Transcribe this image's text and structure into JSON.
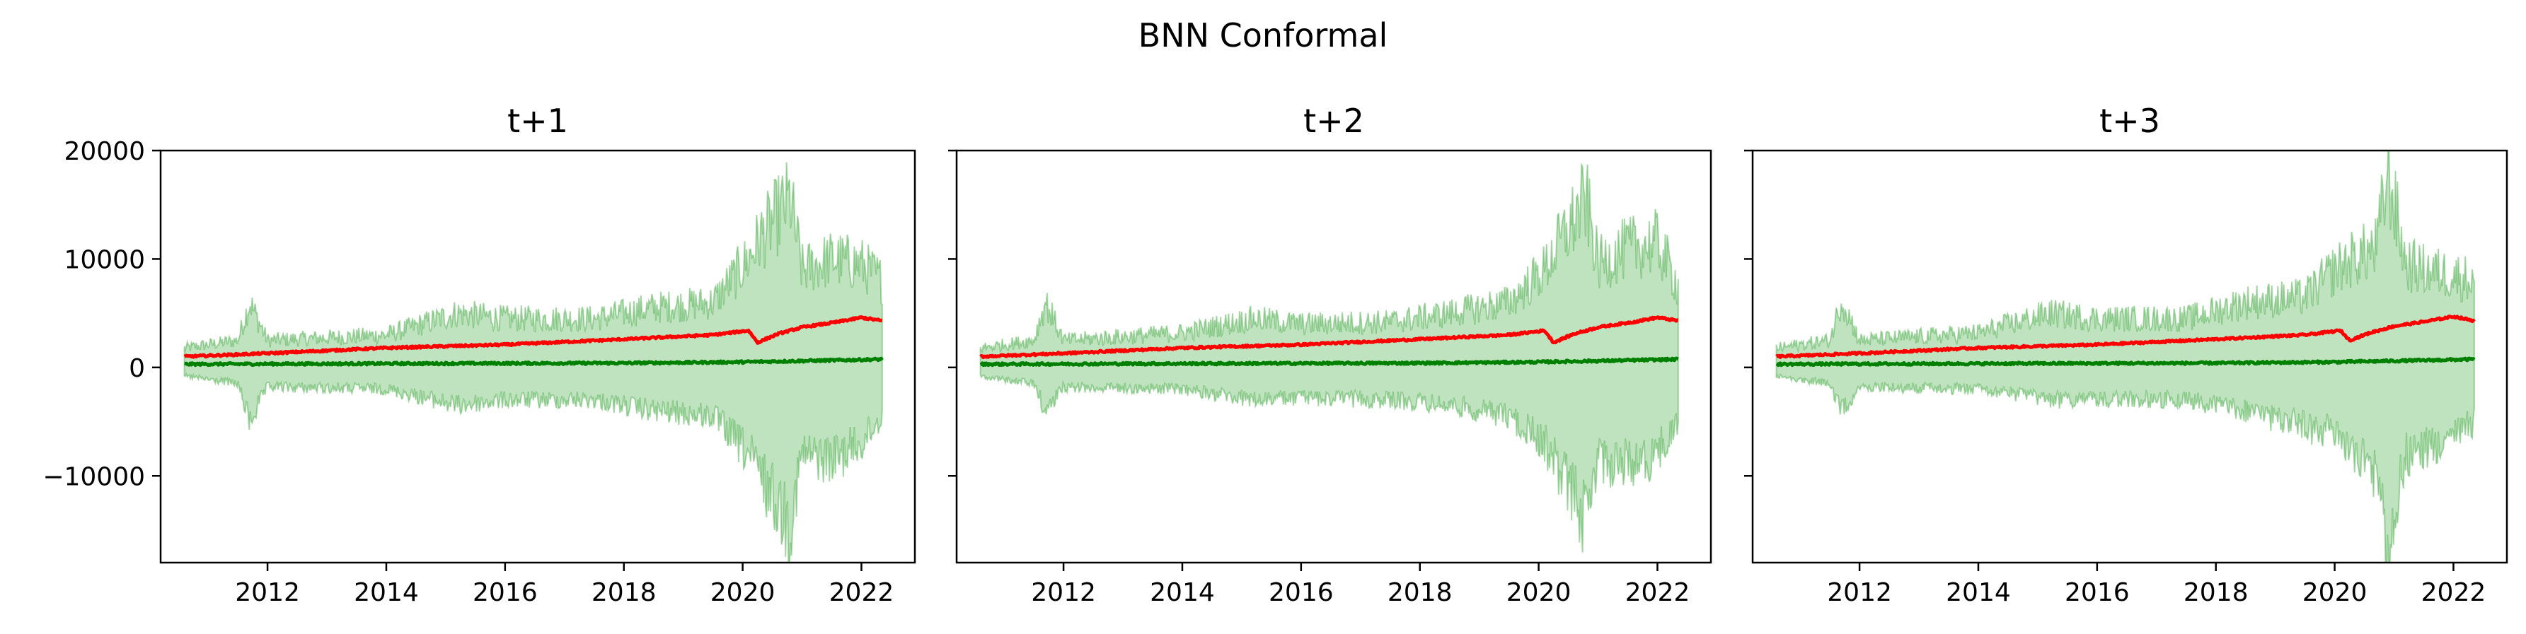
{
  "figure": {
    "suptitle": "BNN Conformal",
    "colors": {
      "predicted": "#ff0000",
      "actual": "#008000",
      "interval": "#2ca02c",
      "background": "#ffffff"
    }
  },
  "chart_data": [
    {
      "type": "line",
      "title": "t+1",
      "xlabel": "",
      "ylabel": "",
      "xlim": [
        2010.2,
        2022.9
      ],
      "ylim": [
        -18000,
        20000
      ],
      "xticks": [
        "2012",
        "2014",
        "2016",
        "2018",
        "2020",
        "2022"
      ],
      "yticks": [
        "20000",
        "10000",
        "0",
        "−10000"
      ],
      "grid": false,
      "legend": "none",
      "x_start": 2010.6,
      "x_end": 2022.35,
      "series": [
        {
          "role": "predicted",
          "color": "#ff0000",
          "x": [
            2010.6,
            2012,
            2014,
            2016,
            2018,
            2019.5,
            2020.1,
            2020.25,
            2020.6,
            2021,
            2021.6,
            2022,
            2022.35
          ],
          "y": [
            1000,
            1300,
            1800,
            2100,
            2600,
            3000,
            3400,
            2300,
            3100,
            3700,
            4200,
            4600,
            4300
          ]
        },
        {
          "role": "actual",
          "color": "#008000",
          "x": [
            2010.6,
            2014,
            2018,
            2020,
            2021,
            2022.35
          ],
          "y": [
            300,
            350,
            400,
            500,
            600,
            750
          ]
        },
        {
          "role": "interval-upper",
          "color": "#2ca02c",
          "x": [
            2010.6,
            2011.5,
            2011.7,
            2012,
            2014,
            2015.2,
            2016,
            2017.5,
            2018.5,
            2019.5,
            2020.1,
            2020.3,
            2020.8,
            2021,
            2021.5,
            2022,
            2022.35
          ],
          "y": [
            1800,
            2500,
            6000,
            2500,
            3000,
            5000,
            4500,
            4500,
            5500,
            6000,
            10000,
            12000,
            15500,
            9000,
            10000,
            9500,
            8000
          ]
        },
        {
          "role": "interval-lower",
          "color": "#2ca02c",
          "x": [
            2010.6,
            2011.5,
            2011.7,
            2012,
            2014,
            2015.2,
            2016,
            2017.5,
            2018.5,
            2019.5,
            2020.1,
            2020.3,
            2020.8,
            2021,
            2021.5,
            2022,
            2022.35
          ],
          "y": [
            -800,
            -1500,
            -5000,
            -1800,
            -2000,
            -3500,
            -3000,
            -3000,
            -4000,
            -4500,
            -8000,
            -10000,
            -14500,
            -8000,
            -8500,
            -7000,
            -4500
          ]
        }
      ]
    },
    {
      "type": "line",
      "title": "t+2",
      "xlabel": "",
      "ylabel": "",
      "xlim": [
        2010.2,
        2022.9
      ],
      "ylim": [
        -18000,
        20000
      ],
      "xticks": [
        "2012",
        "2014",
        "2016",
        "2018",
        "2020",
        "2022"
      ],
      "yticks": [],
      "grid": false,
      "legend": "none",
      "x_start": 2010.6,
      "x_end": 2022.35,
      "series": [
        {
          "role": "predicted",
          "color": "#ff0000",
          "x": [
            2010.6,
            2012,
            2014,
            2016,
            2018,
            2019.5,
            2020.1,
            2020.25,
            2020.6,
            2021,
            2021.6,
            2022,
            2022.35
          ],
          "y": [
            1000,
            1300,
            1800,
            2100,
            2600,
            3000,
            3400,
            2300,
            3100,
            3700,
            4200,
            4600,
            4300
          ]
        },
        {
          "role": "actual",
          "color": "#008000",
          "x": [
            2010.6,
            2014,
            2018,
            2020,
            2021,
            2022.35
          ],
          "y": [
            300,
            350,
            400,
            500,
            600,
            750
          ]
        },
        {
          "role": "interval-upper",
          "color": "#2ca02c",
          "x": [
            2010.6,
            2011.5,
            2011.7,
            2012,
            2014,
            2015.2,
            2016,
            2017.5,
            2018.5,
            2019.5,
            2020.1,
            2020.3,
            2020.8,
            2021,
            2021.5,
            2022,
            2022.35
          ],
          "y": [
            1800,
            2500,
            6000,
            2500,
            3200,
            4500,
            4000,
            4200,
            5000,
            6000,
            9000,
            11000,
            15500,
            9500,
            11000,
            11500,
            7500
          ]
        },
        {
          "role": "interval-lower",
          "color": "#2ca02c",
          "x": [
            2010.6,
            2011.5,
            2011.7,
            2012,
            2014,
            2015.2,
            2016,
            2017.5,
            2018.5,
            2019.5,
            2020.1,
            2020.3,
            2020.8,
            2021,
            2021.5,
            2022,
            2022.35
          ],
          "y": [
            -800,
            -1500,
            -4000,
            -1800,
            -2000,
            -3000,
            -2800,
            -3000,
            -3500,
            -4500,
            -7000,
            -9000,
            -14000,
            -8500,
            -9000,
            -8000,
            -5000
          ]
        }
      ]
    },
    {
      "type": "line",
      "title": "t+3",
      "xlabel": "",
      "ylabel": "",
      "xlim": [
        2010.2,
        2022.9
      ],
      "ylim": [
        -18000,
        20000
      ],
      "xticks": [
        "2012",
        "2014",
        "2016",
        "2018",
        "2020",
        "2022"
      ],
      "yticks": [],
      "grid": false,
      "legend": "none",
      "x_start": 2010.6,
      "x_end": 2022.35,
      "series": [
        {
          "role": "predicted",
          "color": "#ff0000",
          "x": [
            2010.6,
            2012,
            2014,
            2016,
            2018,
            2019.5,
            2020.1,
            2020.25,
            2020.6,
            2021,
            2021.6,
            2022,
            2022.35
          ],
          "y": [
            1000,
            1300,
            1800,
            2100,
            2600,
            3000,
            3400,
            2500,
            3200,
            3800,
            4300,
            4700,
            4300
          ]
        },
        {
          "role": "actual",
          "color": "#008000",
          "x": [
            2010.6,
            2014,
            2018,
            2020,
            2021,
            2022.35
          ],
          "y": [
            300,
            350,
            400,
            500,
            600,
            750
          ]
        },
        {
          "role": "interval-upper",
          "color": "#2ca02c",
          "x": [
            2010.6,
            2011.5,
            2011.7,
            2012,
            2014,
            2015.2,
            2016,
            2017.5,
            2018.5,
            2019.5,
            2020,
            2020.3,
            2020.7,
            2020.9,
            2021.2,
            2021.5,
            2022,
            2022.35
          ],
          "y": [
            1800,
            2500,
            6300,
            2500,
            3200,
            5000,
            4500,
            4500,
            6000,
            6500,
            9000,
            10000,
            11000,
            18000,
            9500,
            9000,
            8500,
            8000
          ]
        },
        {
          "role": "interval-lower",
          "color": "#2ca02c",
          "x": [
            2010.6,
            2011.5,
            2011.7,
            2012,
            2014,
            2015.2,
            2016,
            2017.5,
            2018.5,
            2019.5,
            2020,
            2020.3,
            2020.7,
            2020.9,
            2021.2,
            2021.5,
            2022,
            2022.35
          ],
          "y": [
            -800,
            -1500,
            -4000,
            -1800,
            -2000,
            -3000,
            -3000,
            -3000,
            -4000,
            -5500,
            -6000,
            -8000,
            -10000,
            -16500,
            -8000,
            -7500,
            -6500,
            -5000
          ]
        }
      ]
    }
  ]
}
